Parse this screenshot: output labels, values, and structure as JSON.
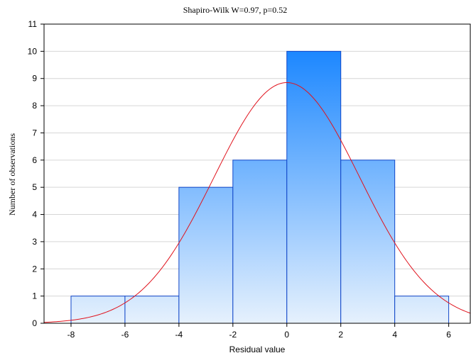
{
  "chart_data": {
    "type": "bar",
    "title": "Shapiro-Wilk W=0.97, p=0.52",
    "xlabel": "Residual value",
    "ylabel": "Number of observations",
    "xlim": [
      -9,
      6.8
    ],
    "ylim": [
      0,
      11
    ],
    "xticks": [
      -8,
      -6,
      -4,
      -2,
      0,
      2,
      4,
      6
    ],
    "yticks": [
      0,
      1,
      2,
      3,
      4,
      5,
      6,
      7,
      8,
      9,
      10,
      11
    ],
    "grid": true,
    "bins": [
      {
        "from": -8,
        "to": -6,
        "count": 1
      },
      {
        "from": -6,
        "to": -4,
        "count": 1
      },
      {
        "from": -4,
        "to": -2,
        "count": 5
      },
      {
        "from": -2,
        "to": 0,
        "count": 6
      },
      {
        "from": 0,
        "to": 2,
        "count": 10
      },
      {
        "from": 2,
        "to": 4,
        "count": 6
      },
      {
        "from": 4,
        "to": 6,
        "count": 1
      }
    ],
    "normal_curve": {
      "mean": 0,
      "sd": 2.7,
      "peak": 8.85,
      "color": "#e0131d"
    },
    "bar_gradient": [
      "#1a86ff",
      "#e6f1fd"
    ],
    "bar_edge_color": "#1046c8"
  }
}
